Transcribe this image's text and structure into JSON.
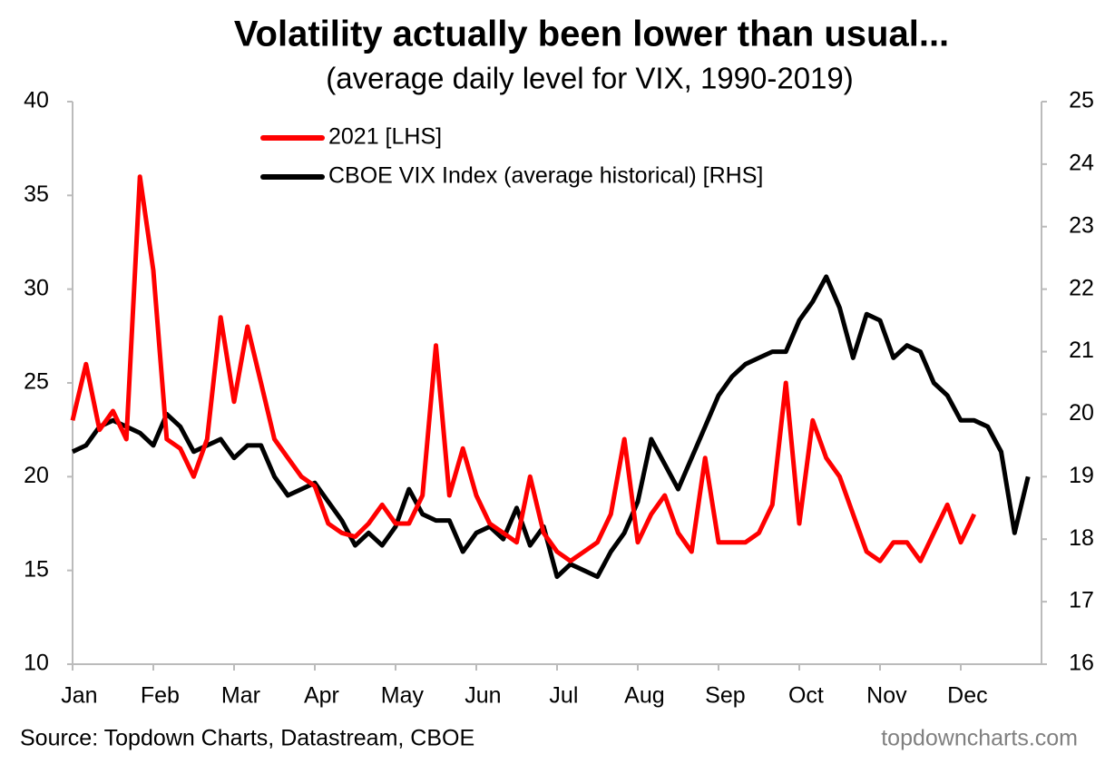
{
  "chart_data": {
    "type": "line",
    "title": "Volatility actually been lower than usual...",
    "subtitle": "(average daily level for VIX, 1990-2019)",
    "source": "Source: Topdown Charts, Datastream, CBOE",
    "watermark": "topdowncharts.com",
    "categories": [
      "Jan",
      null,
      null,
      null,
      null,
      null,
      "Feb",
      null,
      null,
      null,
      null,
      null,
      "Mar",
      null,
      null,
      null,
      null,
      null,
      "Apr",
      null,
      null,
      null,
      null,
      null,
      "May",
      null,
      null,
      null,
      null,
      null,
      "Jun",
      null,
      null,
      null,
      null,
      null,
      "Jul",
      null,
      null,
      null,
      null,
      null,
      "Aug",
      null,
      null,
      null,
      null,
      null,
      "Sep",
      null,
      null,
      null,
      null,
      null,
      "Oct",
      null,
      null,
      null,
      null,
      null,
      "Nov",
      null,
      null,
      null,
      null,
      null,
      "Dec",
      null,
      null,
      null,
      null,
      null
    ],
    "series": [
      {
        "name": "2021 [LHS]",
        "color": "#ff0000",
        "values": [
          23,
          26,
          22.5,
          23.5,
          22,
          36,
          31,
          22,
          21.5,
          20,
          22,
          28.5,
          24,
          28,
          25,
          22,
          21,
          20,
          19.5,
          17.5,
          17,
          16.8,
          17.5,
          18.5,
          17.5,
          17.5,
          19,
          27,
          19,
          21.5,
          19,
          17.5,
          17,
          16.5,
          20,
          17,
          16,
          15.5,
          16,
          16.5,
          18,
          22,
          16.5,
          18,
          19,
          17,
          16,
          21,
          16.5,
          16.5,
          16.5,
          17,
          18.5,
          25,
          17.5,
          23,
          21,
          20,
          18,
          16,
          15.5,
          16.5,
          16.5,
          15.5,
          17,
          18.5,
          16.5,
          18,
          null,
          null,
          null,
          null
        ]
      },
      {
        "name": "CBOE VIX Index (average historical) [RHS]",
        "color": "#000000",
        "axis": "y2",
        "values": [
          19.4,
          19.5,
          19.8,
          19.9,
          19.8,
          19.7,
          19.5,
          20,
          19.8,
          19.4,
          19.5,
          19.6,
          19.3,
          19.5,
          19.5,
          19.0,
          18.7,
          18.8,
          18.9,
          18.6,
          18.3,
          17.9,
          18.1,
          17.9,
          18.2,
          18.8,
          18.4,
          18.3,
          18.3,
          17.8,
          18.1,
          18.2,
          18.0,
          18.5,
          17.9,
          18.2,
          17.4,
          17.6,
          17.5,
          17.4,
          17.8,
          18.1,
          18.6,
          19.6,
          19.2,
          18.8,
          19.3,
          19.8,
          20.3,
          20.6,
          20.8,
          20.9,
          21.0,
          21.0,
          21.5,
          21.8,
          22.2,
          21.7,
          20.9,
          21.6,
          21.5,
          20.9,
          21.1,
          21.0,
          20.5,
          20.3,
          19.9,
          19.9,
          19.8,
          19.4,
          18.1,
          19.0
        ]
      }
    ],
    "ylim": [
      10,
      40
    ],
    "yticks": [
      10,
      15,
      20,
      25,
      30,
      35,
      40
    ],
    "y2lim": [
      16,
      25
    ],
    "y2ticks": [
      16,
      17,
      18,
      19,
      20,
      21,
      22,
      23,
      24,
      25
    ],
    "legend": "top-left",
    "grid": false
  }
}
